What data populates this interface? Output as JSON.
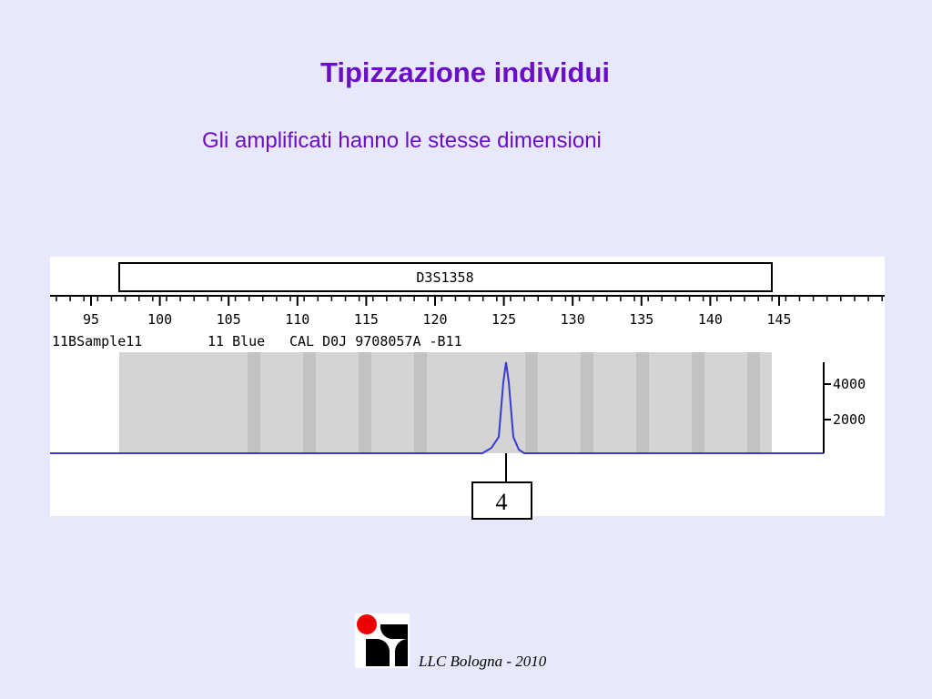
{
  "header": {
    "title": "Tipizzazione individui",
    "subtitle": "Gli amplificati hanno le stesse dimensioni"
  },
  "figure": {
    "marker": "D3S1358",
    "x_tick_labels": [
      "95",
      "100",
      "105",
      "110",
      "115",
      "120",
      "125",
      "130",
      "135",
      "140",
      "145"
    ],
    "sample_info": [
      "11BSample11",
      "11 Blue",
      "CAL D0J 9708057A -B11"
    ],
    "y_tick_labels": [
      "4000",
      "2000"
    ],
    "allele_label": "4"
  },
  "footer": {
    "text": "LLC Bologna - 2010"
  }
}
